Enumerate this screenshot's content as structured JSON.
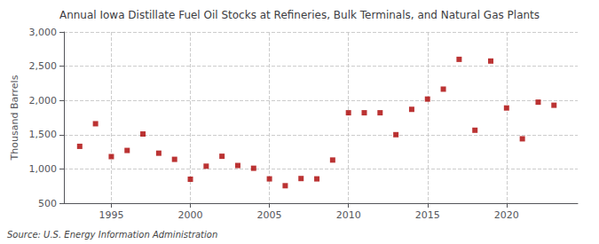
{
  "chart_data": {
    "type": "scatter",
    "title": "Annual Iowa Distillate Fuel Oil Stocks at Refineries, Bulk Terminals, and Natural Gas Plants",
    "ylabel": "Thousand Barrels",
    "source": "Source: U.S. Energy Information Administration",
    "x": [
      1993,
      1994,
      1995,
      1996,
      1997,
      1998,
      1999,
      2000,
      2001,
      2002,
      2003,
      2004,
      2005,
      2006,
      2007,
      2008,
      2009,
      2010,
      2011,
      2012,
      2013,
      2014,
      2015,
      2016,
      2017,
      2018,
      2019,
      2020,
      2021,
      2022,
      2023
    ],
    "values": [
      1330,
      1660,
      1180,
      1270,
      1510,
      1230,
      1140,
      850,
      1040,
      1185,
      1050,
      1010,
      855,
      755,
      860,
      855,
      1130,
      1820,
      1820,
      1820,
      1500,
      1870,
      2020,
      2165,
      2600,
      1565,
      2575,
      1890,
      1440,
      1975,
      1930
    ],
    "color": "#aa0000",
    "marker": "square",
    "xlim": [
      1992.0,
      2024.5
    ],
    "xticks": [
      1995,
      2000,
      2005,
      2010,
      2015,
      2020
    ],
    "ylim": [
      500,
      3000
    ],
    "yticks": [
      500,
      {
        "value": 1000,
        "label": "1,000"
      },
      {
        "value": 1500,
        "label": "1,500"
      },
      {
        "value": 2000,
        "label": "2,000"
      },
      {
        "value": 2500,
        "label": "2,500"
      },
      {
        "value": 3000,
        "label": "3,000"
      }
    ],
    "grid": true
  }
}
